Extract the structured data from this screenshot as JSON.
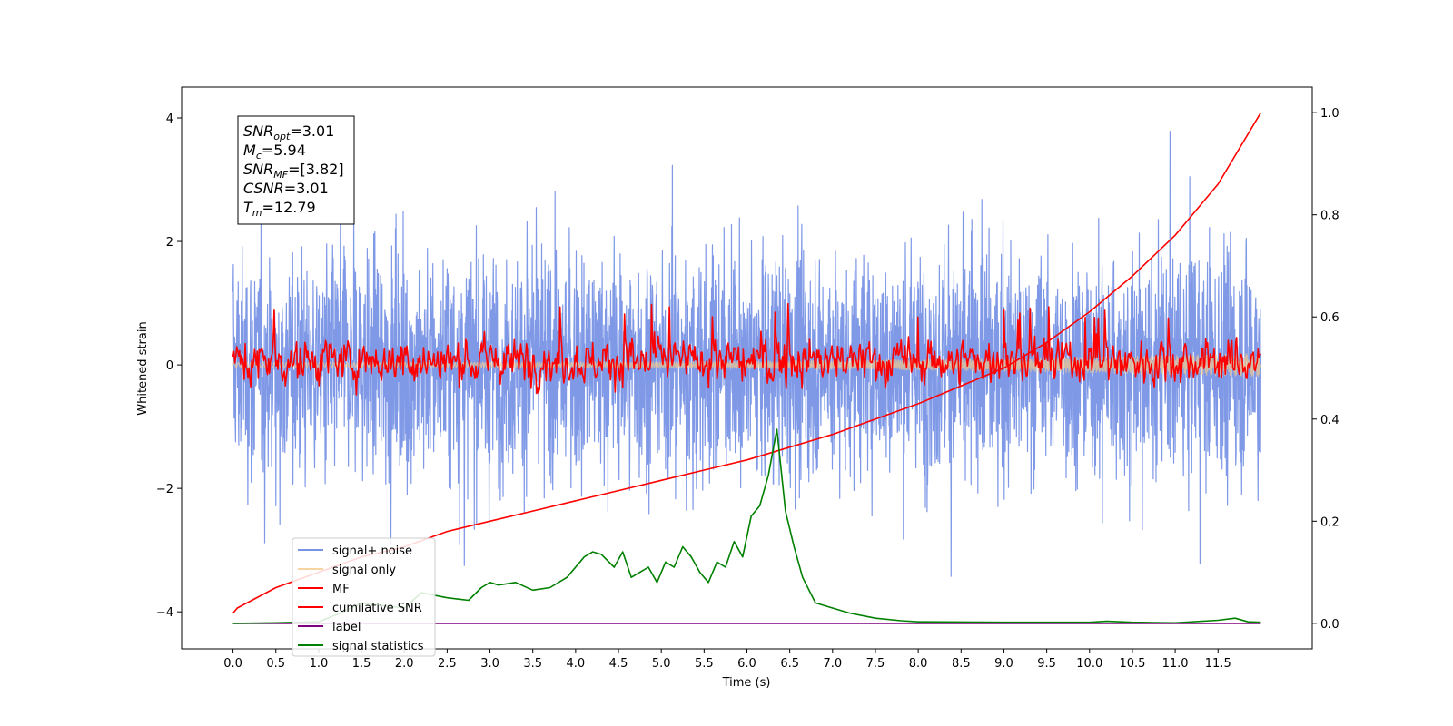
{
  "chart_data": {
    "type": "line",
    "xlabel": "Time (s)",
    "ylabel": "Whitened strain",
    "xlim": [
      -0.6,
      12.6
    ],
    "ylim": [
      -4.6,
      4.5
    ],
    "y2lim": [
      -0.05,
      1.05
    ],
    "x_ticks": [
      0.0,
      0.5,
      1.0,
      1.5,
      2.0,
      2.5,
      3.0,
      3.5,
      4.0,
      4.5,
      5.0,
      5.5,
      6.0,
      6.5,
      7.0,
      7.5,
      8.0,
      8.5,
      9.0,
      9.5,
      10.0,
      10.5,
      11.0,
      11.5
    ],
    "x_tick_labels": [
      "0.0",
      "0.5",
      "1.0",
      "1.5",
      "2.0",
      "2.5",
      "3.0",
      "3.5",
      "4.0",
      "4.5",
      "5.0",
      "5.5",
      "6.0",
      "6.5",
      "7.0",
      "7.5",
      "8.0",
      "8.5",
      "9.0",
      "9.5",
      "10.0",
      "10.5",
      "11.0",
      "11.5"
    ],
    "y_ticks": [
      -4,
      -2,
      0,
      2,
      4
    ],
    "y_tick_labels": [
      "−4",
      "−2",
      "0",
      "2",
      "4"
    ],
    "y2_ticks": [
      0.0,
      0.2,
      0.4,
      0.6,
      0.8,
      1.0
    ],
    "y2_tick_labels": [
      "0.0",
      "0.2",
      "0.4",
      "0.6",
      "0.8",
      "1.0"
    ],
    "annotation": {
      "lines": [
        {
          "main": "SNR",
          "sub": "opt",
          "rest": "=3.01"
        },
        {
          "main": "M",
          "sub": "c",
          "rest": "=5.94"
        },
        {
          "main": "SNR",
          "sub": "MF",
          "rest": "=[3.82]"
        },
        {
          "main": "CSNR",
          "sub": "",
          "rest": "=3.01"
        },
        {
          "main": "T",
          "sub": "m",
          "rest": "=12.79"
        }
      ]
    },
    "series": [
      {
        "name": "signal+ noise",
        "color": "#7893e6",
        "axis": "left",
        "kind": "noise",
        "x_range": [
          0.0,
          12.0
        ],
        "amplitude": 2.5,
        "min": -4.1,
        "max": 4.05
      },
      {
        "name": "signal only",
        "color": "#f5c98a",
        "axis": "left",
        "kind": "chirp",
        "x_range": [
          0.0,
          12.0
        ],
        "amplitude_end": 0.15
      },
      {
        "name": "MF",
        "color": "#ff0000",
        "axis": "left",
        "kind": "oscillation",
        "x_range": [
          0.0,
          12.0
        ],
        "min": -0.5,
        "max": 1.0
      },
      {
        "name": "cumilative SNR",
        "color": "#ff0000",
        "axis": "right",
        "x": [
          0.0,
          0.05,
          0.5,
          1.0,
          1.5,
          2.0,
          2.5,
          3.0,
          3.5,
          4.0,
          4.5,
          5.0,
          5.5,
          6.0,
          6.5,
          7.0,
          7.5,
          8.0,
          8.5,
          9.0,
          9.5,
          10.0,
          10.5,
          11.0,
          11.5,
          12.0
        ],
        "y": [
          0.02,
          0.03,
          0.07,
          0.1,
          0.13,
          0.15,
          0.18,
          0.2,
          0.22,
          0.24,
          0.26,
          0.28,
          0.3,
          0.32,
          0.345,
          0.37,
          0.4,
          0.43,
          0.465,
          0.5,
          0.55,
          0.61,
          0.68,
          0.76,
          0.86,
          1.0
        ]
      },
      {
        "name": "label",
        "color": "#800080",
        "axis": "right",
        "x": [
          0.0,
          12.0
        ],
        "y": [
          0.0,
          0.0
        ]
      },
      {
        "name": "signal statistics",
        "color": "#008000",
        "axis": "right",
        "x": [
          0.0,
          0.5,
          1.0,
          1.25,
          1.5,
          1.75,
          2.0,
          2.2,
          2.5,
          2.75,
          2.9,
          3.0,
          3.1,
          3.3,
          3.5,
          3.7,
          3.9,
          4.1,
          4.2,
          4.3,
          4.45,
          4.55,
          4.65,
          4.75,
          4.85,
          4.95,
          5.05,
          5.15,
          5.25,
          5.35,
          5.45,
          5.55,
          5.65,
          5.75,
          5.85,
          5.95,
          6.05,
          6.15,
          6.25,
          6.35,
          6.4,
          6.45,
          6.55,
          6.65,
          6.8,
          7.0,
          7.2,
          7.5,
          7.8,
          8.0,
          9.0,
          10.0,
          10.2,
          10.5,
          11.0,
          11.5,
          11.7,
          11.85,
          12.0
        ],
        "y": [
          0.0,
          0.001,
          0.003,
          0.02,
          0.04,
          0.035,
          0.03,
          0.06,
          0.05,
          0.045,
          0.07,
          0.08,
          0.075,
          0.08,
          0.065,
          0.07,
          0.09,
          0.13,
          0.14,
          0.135,
          0.11,
          0.14,
          0.09,
          0.1,
          0.11,
          0.08,
          0.12,
          0.11,
          0.15,
          0.13,
          0.1,
          0.08,
          0.12,
          0.11,
          0.16,
          0.13,
          0.21,
          0.23,
          0.29,
          0.38,
          0.3,
          0.22,
          0.15,
          0.09,
          0.04,
          0.03,
          0.02,
          0.01,
          0.005,
          0.003,
          0.002,
          0.002,
          0.004,
          0.002,
          0.001,
          0.006,
          0.01,
          0.003,
          0.002
        ]
      }
    ]
  }
}
